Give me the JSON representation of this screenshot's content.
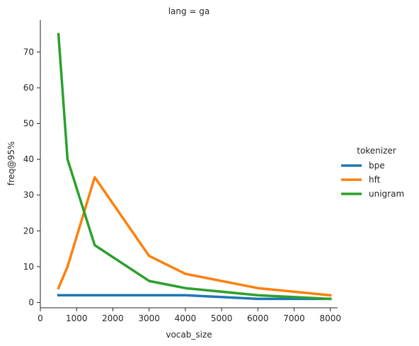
{
  "chart_data": {
    "type": "line",
    "title": "lang = ga",
    "xlabel": "vocab_size",
    "ylabel": "freq@95%",
    "xlim": [
      0,
      8200
    ],
    "ylim": [
      -1.5,
      79
    ],
    "xticks": [
      0,
      1000,
      2000,
      3000,
      4000,
      5000,
      6000,
      7000,
      8000
    ],
    "yticks": [
      0,
      10,
      20,
      30,
      40,
      50,
      60,
      70
    ],
    "grid": false,
    "legend": {
      "title": "tokenizer",
      "placement": "right"
    },
    "series": [
      {
        "name": "bpe",
        "color": "#1f77b4",
        "x": [
          500,
          750,
          1500,
          3000,
          4000,
          6000,
          8000
        ],
        "y": [
          2,
          2,
          2,
          2,
          2,
          1,
          1
        ]
      },
      {
        "name": "hft",
        "color": "#ff7f0e",
        "x": [
          500,
          750,
          1500,
          3000,
          4000,
          6000,
          8000
        ],
        "y": [
          4,
          10,
          35,
          13,
          8,
          4,
          2
        ]
      },
      {
        "name": "unigram",
        "color": "#2ca02c",
        "x": [
          500,
          750,
          1500,
          3000,
          4000,
          6000,
          8000
        ],
        "y": [
          75,
          40,
          16,
          6,
          4,
          2,
          1
        ]
      }
    ]
  }
}
